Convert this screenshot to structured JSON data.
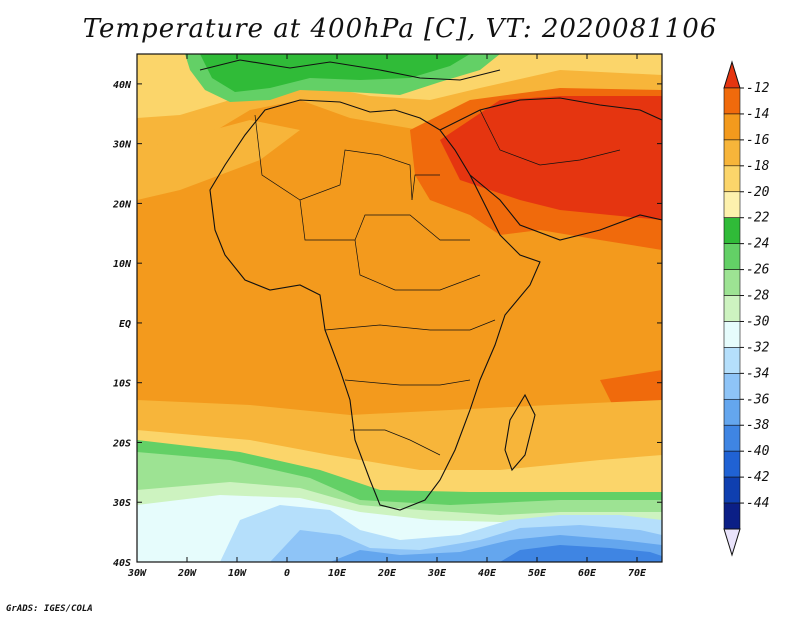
{
  "title": "Temperature at 400hPa [C], VT: 2020081106",
  "credit": "GrADS: IGES/COLA",
  "map": {
    "lon_labels": [
      "30W",
      "20W",
      "10W",
      "0",
      "10E",
      "20E",
      "30E",
      "40E",
      "50E",
      "60E",
      "70E"
    ],
    "lat_labels": [
      "40N",
      "30N",
      "20N",
      "10N",
      "EQ",
      "10S",
      "20S",
      "30S",
      "40S"
    ],
    "lon_range": [
      -30,
      75
    ],
    "lat_range": [
      -40,
      45
    ]
  },
  "colorbar": {
    "levels": [
      "-12",
      "-14",
      "-16",
      "-18",
      "-20",
      "-22",
      "-24",
      "-26",
      "-28",
      "-30",
      "-32",
      "-34",
      "-36",
      "-38",
      "-40",
      "-42",
      "-44"
    ],
    "colors": [
      "#e53510",
      "#f06a0c",
      "#f39a1d",
      "#f7b53a",
      "#fbd56a",
      "#fdf1ad",
      "#30bb38",
      "#63d066",
      "#9de393",
      "#cdf3c0",
      "#e6fcfc",
      "#b5dffb",
      "#8ec4f7",
      "#64a6ee",
      "#3f85e3",
      "#2062d4",
      "#0f3fb0",
      "#0b1f86",
      "#e9e3fb"
    ]
  }
}
